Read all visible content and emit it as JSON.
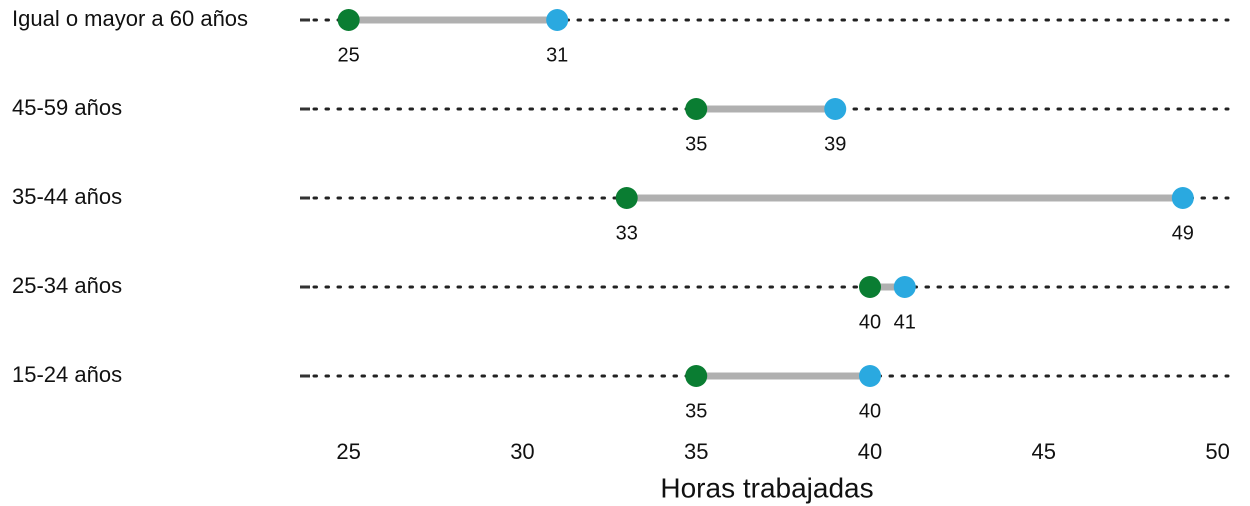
{
  "chart_data": {
    "type": "dumbbell",
    "categories": [
      "Igual o mayor a 60 años",
      "45-59 años",
      "35-44 años",
      "25-34 años",
      "15-24 años"
    ],
    "series": [
      {
        "color": "#0a7d32",
        "values": [
          25,
          35,
          33,
          40,
          35
        ]
      },
      {
        "color": "#2aa9e0",
        "values": [
          31,
          39,
          49,
          41,
          40
        ]
      }
    ],
    "connector_color": "#b0b0b0",
    "xlabel": "Horas trabajadas",
    "xlim": [
      23.6,
      50.3
    ],
    "xticks": [
      25,
      30,
      35,
      40,
      45,
      50
    ]
  }
}
